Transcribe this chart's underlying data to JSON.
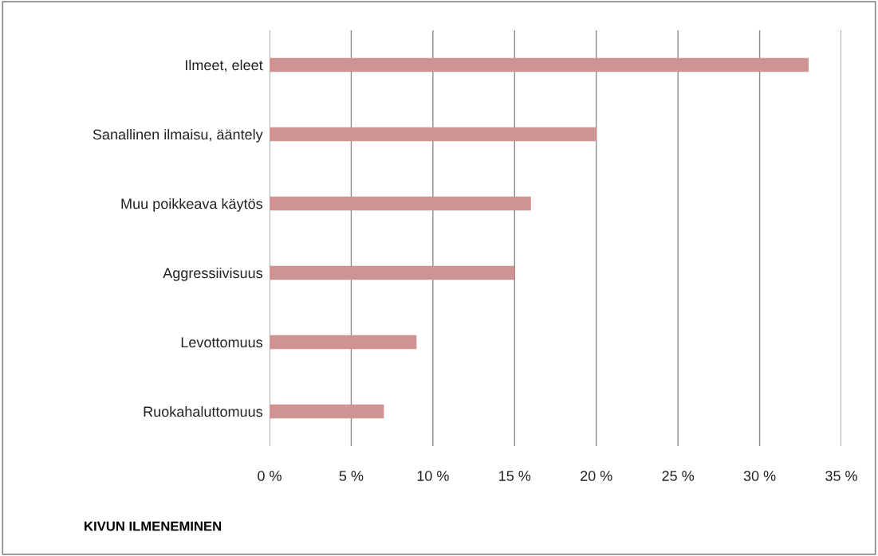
{
  "chart_data": {
    "type": "bar",
    "orientation": "horizontal",
    "xlabel": "KIVUN ILMENEMINEN",
    "categories": [
      "Ilmeet, eleet",
      "Sanallinen ilmaisu, ääntely",
      "Muu poikkeava käytös",
      "Aggressiivisuus",
      "Levottomuus",
      "Ruokahaluttomuus"
    ],
    "values": [
      0.33,
      0.2,
      0.16,
      0.15,
      0.09,
      0.07
    ],
    "color": "#d09393",
    "xlim": [
      0,
      0.35
    ],
    "xticks": [
      {
        "value": 0,
        "label": "0 %"
      },
      {
        "value": 0.05,
        "label": "5 %"
      },
      {
        "value": 0.1,
        "label": "10 %"
      },
      {
        "value": 0.15,
        "label": "15 %"
      },
      {
        "value": 0.2,
        "label": "20 %"
      },
      {
        "value": 0.25,
        "label": "25 %"
      },
      {
        "value": 0.3,
        "label": "30 %"
      },
      {
        "value": 0.35,
        "label": "35 %"
      }
    ],
    "grid": "x",
    "legend": false
  }
}
